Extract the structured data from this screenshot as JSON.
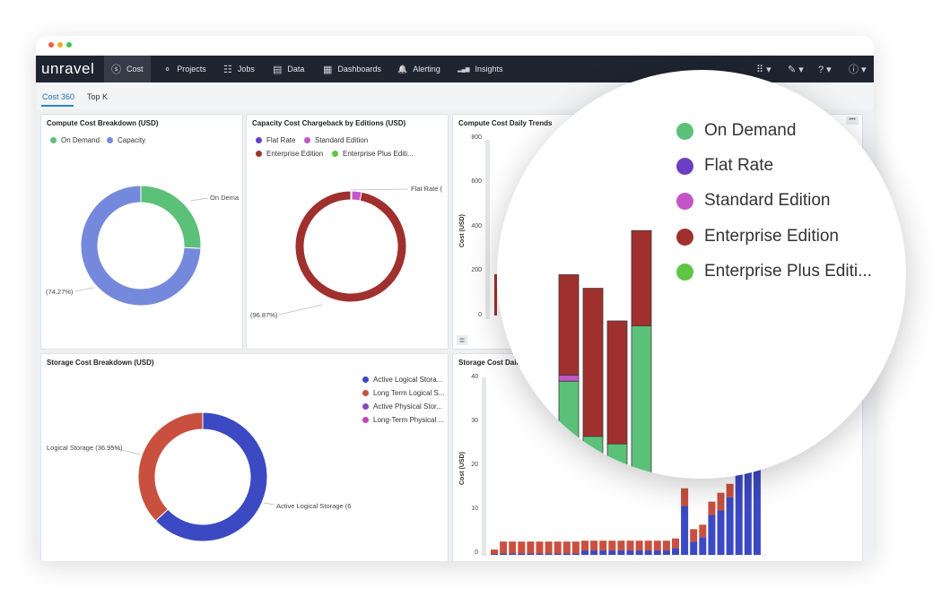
{
  "window": {
    "dots": [
      "#f05a4a",
      "#f5a623",
      "#3ec74b"
    ]
  },
  "navbar": {
    "logo": "unravel",
    "items": [
      {
        "label": "Cost",
        "icon": "dollar-circle-icon",
        "glyph": "ⓢ"
      },
      {
        "label": "Projects",
        "icon": "projects-icon",
        "glyph": "⚬"
      },
      {
        "label": "Jobs",
        "icon": "jobs-icon",
        "glyph": "☷"
      },
      {
        "label": "Data",
        "icon": "database-icon",
        "glyph": "▤"
      },
      {
        "label": "Dashboards",
        "icon": "dashboard-icon",
        "glyph": "▦"
      },
      {
        "label": "Alerting",
        "icon": "bell-icon",
        "glyph": "🔔"
      },
      {
        "label": "Insights",
        "icon": "insights-bar-icon",
        "glyph": "▂▄▆"
      }
    ],
    "right": [
      {
        "icon": "apps-grid-icon",
        "glyph": "⠿ ▾"
      },
      {
        "icon": "feather-icon",
        "glyph": "✎ ▾"
      },
      {
        "icon": "help-icon",
        "glyph": "? ▾"
      },
      {
        "icon": "user-icon",
        "glyph": "ⓘ ▾"
      }
    ]
  },
  "subnav": {
    "tabs": [
      "Cost 360",
      "Top K"
    ]
  },
  "panels": {
    "compute": {
      "title": "Compute Cost Breakdown (USD)",
      "legend": [
        "On Demand",
        "Capacity"
      ],
      "label_right": "On Dema",
      "label_left": "(74.27%)"
    },
    "capacity": {
      "title": "Capacity Cost Chargeback by Editions (USD)",
      "legend": [
        "Flat Rate",
        "Standard Edition",
        "Enterprise Edition",
        "Enterprise Plus Editi..."
      ],
      "label_right": "Flat Rate (",
      "label_left": "(96.87%)"
    },
    "daily": {
      "title": "Compute Cost Daily Trends",
      "ylabel": "Cost (USD)",
      "yticks": [
        "800",
        "600",
        "400",
        "200",
        "0"
      ]
    },
    "storage": {
      "title": "Storage Cost Breakdown (USD)",
      "legend": [
        "Active Logical Stora...",
        "Long Term Logical S...",
        "Active Physical Stor...",
        "Long-Term Physical ..."
      ],
      "label_left": "Logical Storage (36.95%)",
      "label_right": "Active Logical Storage (6"
    },
    "storage_daily": {
      "title": "Storage Cost Daily",
      "ylabel": "Cost (USD)",
      "yticks": [
        "40",
        "30",
        "20",
        "10",
        "0"
      ]
    }
  },
  "magnifier": {
    "legend": [
      "On Demand",
      "Flat Rate",
      "Standard Edition",
      "Enterprise Edition",
      "Enterprise Plus Editi..."
    ]
  },
  "colors": {
    "on_demand": "#5bc179",
    "capacity": "#7589dc",
    "flat_rate": "#6a3fc2",
    "standard": "#c256c8",
    "enterprise": "#a0302e",
    "enterprise_plus": "#60c445",
    "active_logical": "#3b49c2",
    "long_term_logical": "#c9503f",
    "active_physical": "#8a47c4",
    "long_term_physical": "#c346b7"
  },
  "chart_data": [
    {
      "type": "pie",
      "title": "Compute Cost Breakdown (USD)",
      "labels": [
        "On Demand",
        "Capacity"
      ],
      "values": [
        25.73,
        74.27
      ],
      "donut": true
    },
    {
      "type": "pie",
      "title": "Capacity Cost Chargeback by Editions (USD)",
      "labels": [
        "Flat Rate",
        "Standard Edition",
        "Enterprise Edition",
        "Enterprise Plus Editi..."
      ],
      "values": [
        0.3,
        2.83,
        96.87,
        0
      ],
      "donut": true
    },
    {
      "type": "pie",
      "title": "Storage Cost Breakdown (USD)",
      "labels": [
        "Active Logical Stora...",
        "Long Term Logical S...",
        "Active Physical Stor...",
        "Long-Term Physical ..."
      ],
      "values": [
        63.05,
        36.95,
        0,
        0
      ],
      "donut": true
    },
    {
      "type": "bar",
      "stacked": true,
      "title": "Storage Cost Daily",
      "ylabel": "Cost (USD)",
      "ylim": [
        0,
        40
      ],
      "series": [
        {
          "name": "Active Logical Stora...",
          "values": [
            0.2,
            0.3,
            0.3,
            0.3,
            0.3,
            0.3,
            0.3,
            0.3,
            0.3,
            0.3,
            1,
            1,
            1,
            1,
            1,
            1,
            1,
            1,
            1,
            1,
            1.5,
            11,
            3,
            4,
            9,
            10,
            13,
            20,
            27,
            29
          ]
        },
        {
          "name": "Long Term Logical S...",
          "values": [
            1,
            2.7,
            2.7,
            2.7,
            2.7,
            2.7,
            2.7,
            2.7,
            2.7,
            2.7,
            2.2,
            2.2,
            2.2,
            2.2,
            2.2,
            2.2,
            2.2,
            2.2,
            2.2,
            2.2,
            2.2,
            4,
            2.8,
            2.8,
            3,
            4,
            3,
            3,
            3,
            3
          ]
        }
      ]
    },
    {
      "type": "bar",
      "stacked": true,
      "title": "Compute Cost Daily Trends",
      "ylabel": "Cost (USD)",
      "ylim": [
        0,
        800
      ],
      "series": [
        {
          "name": "On Demand",
          "values": [
            405,
            295,
            280,
            515
          ]
        },
        {
          "name": "Standard Edition",
          "values": [
            12,
            0,
            0,
            0
          ]
        },
        {
          "name": "Enterprise Edition",
          "values": [
            200,
            295,
            245,
            190
          ]
        }
      ]
    }
  ]
}
